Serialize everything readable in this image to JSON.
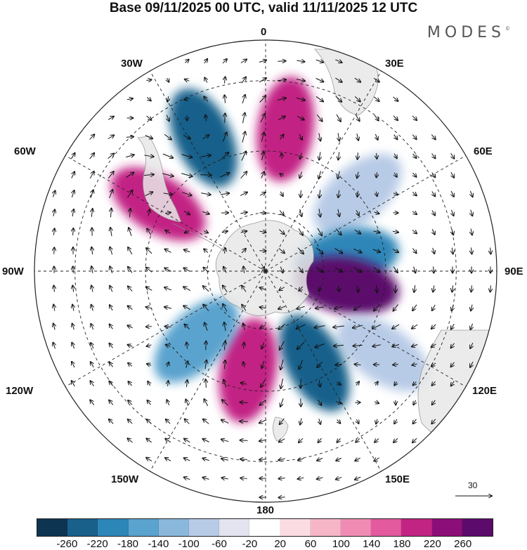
{
  "header": {
    "title": "Base 09/11/2025 00 UTC, valid 11/11/2025 12 UTC",
    "brand": "MODES",
    "brand_mark": "©"
  },
  "longitude_labels": {
    "top": "0",
    "top_right": "30E",
    "right_upper": "60E",
    "right": "90E",
    "right_lower": "120E",
    "bottom_right": "150E",
    "bottom": "180",
    "bottom_left": "150W",
    "left_lower": "120W",
    "left": "90W",
    "left_upper": "60W",
    "top_left": "30W"
  },
  "reference_vector": {
    "value": "30"
  },
  "colorbar": {
    "colors": [
      "#0d3551",
      "#19608b",
      "#2d86b8",
      "#5aa3ce",
      "#8ab8dc",
      "#b8cbe6",
      "#e3e4f0",
      "#ffffff",
      "#fadce2",
      "#f6b6c8",
      "#f08cb4",
      "#e35a9e",
      "#c22484",
      "#8c0e78",
      "#5c0a6c"
    ],
    "tick_labels": [
      "-260",
      "-220",
      "-180",
      "-140",
      "-100",
      "-60",
      "-20",
      "20",
      "60",
      "100",
      "140",
      "180",
      "220",
      "260"
    ]
  },
  "map_data": {
    "type": "polar-stereographic",
    "hemisphere": "south",
    "field": "anomaly",
    "anomaly_centers": [
      {
        "lon": -25,
        "lat": -42,
        "value": -260
      },
      {
        "lon": -58,
        "lat": -48,
        "value": 200
      },
      {
        "lon": 8,
        "lat": -43,
        "value": 180
      },
      {
        "lon": 50,
        "lat": -50,
        "value": -80
      },
      {
        "lon": 80,
        "lat": -62,
        "value": -220
      },
      {
        "lon": 100,
        "lat": -62,
        "value": 260
      },
      {
        "lon": 125,
        "lat": -43,
        "value": -100
      },
      {
        "lon": 152,
        "lat": -55,
        "value": -240
      },
      {
        "lon": -170,
        "lat": -56,
        "value": 200
      },
      {
        "lon": -135,
        "lat": -57,
        "value": -180
      }
    ]
  }
}
